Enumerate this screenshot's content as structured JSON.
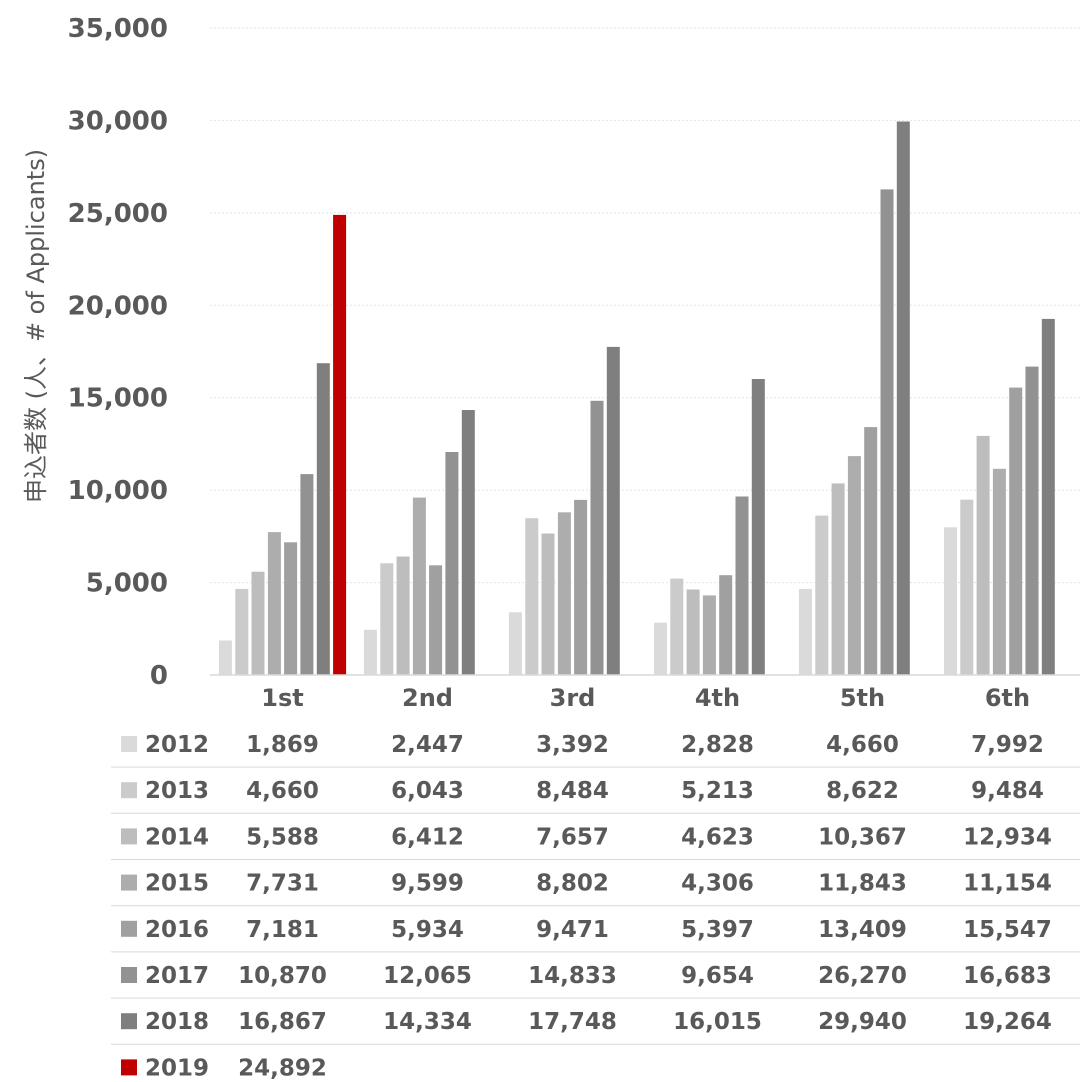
{
  "chart_data": {
    "type": "bar",
    "ylabel": "申込者数 (人、# of Applicants)",
    "ylim": [
      0,
      35000
    ],
    "yticks": [
      "0",
      "5,000",
      "10,000",
      "15,000",
      "20,000",
      "25,000",
      "30,000",
      "35,000"
    ],
    "grid": true,
    "legend": "data-table",
    "categories": [
      "1st",
      "2nd",
      "3rd",
      "4th",
      "5th",
      "6th"
    ],
    "series": [
      {
        "name": "2012",
        "color": "#dadada",
        "values": [
          1869,
          2447,
          3392,
          2828,
          4660,
          7992
        ],
        "labels": [
          "1,869",
          "2,447",
          "3,392",
          "2,828",
          "4,660",
          "7,992"
        ]
      },
      {
        "name": "2013",
        "color": "#cbcbcb",
        "values": [
          4660,
          6043,
          8484,
          5213,
          8622,
          9484
        ],
        "labels": [
          "4,660",
          "6,043",
          "8,484",
          "5,213",
          "8,622",
          "9,484"
        ]
      },
      {
        "name": "2014",
        "color": "#bdbdbd",
        "values": [
          5588,
          6412,
          7657,
          4623,
          10367,
          12934
        ],
        "labels": [
          "5,588",
          "6,412",
          "7,657",
          "4,623",
          "10,367",
          "12,934"
        ]
      },
      {
        "name": "2015",
        "color": "#adadad",
        "values": [
          7731,
          9599,
          8802,
          4306,
          11843,
          11154
        ],
        "labels": [
          "7,731",
          "9,599",
          "8,802",
          "4,306",
          "11,843",
          "11,154"
        ]
      },
      {
        "name": "2016",
        "color": "#a0a0a0",
        "values": [
          7181,
          5934,
          9471,
          5397,
          13409,
          15547
        ],
        "labels": [
          "7,181",
          "5,934",
          "9,471",
          "5,397",
          "13,409",
          "15,547"
        ]
      },
      {
        "name": "2017",
        "color": "#929292",
        "values": [
          10870,
          12065,
          14833,
          9654,
          26270,
          16683
        ],
        "labels": [
          "10,870",
          "12,065",
          "14,833",
          "9,654",
          "26,270",
          "16,683"
        ]
      },
      {
        "name": "2018",
        "color": "#7f7f7f",
        "values": [
          16867,
          14334,
          17748,
          16015,
          29940,
          19264
        ],
        "labels": [
          "16,867",
          "14,334",
          "17,748",
          "16,015",
          "29,940",
          "19,264"
        ]
      },
      {
        "name": "2019",
        "color": "#c00000",
        "values": [
          24892,
          null,
          null,
          null,
          null,
          null
        ],
        "labels": [
          "24,892",
          "",
          "",
          "",
          "",
          ""
        ]
      }
    ]
  }
}
